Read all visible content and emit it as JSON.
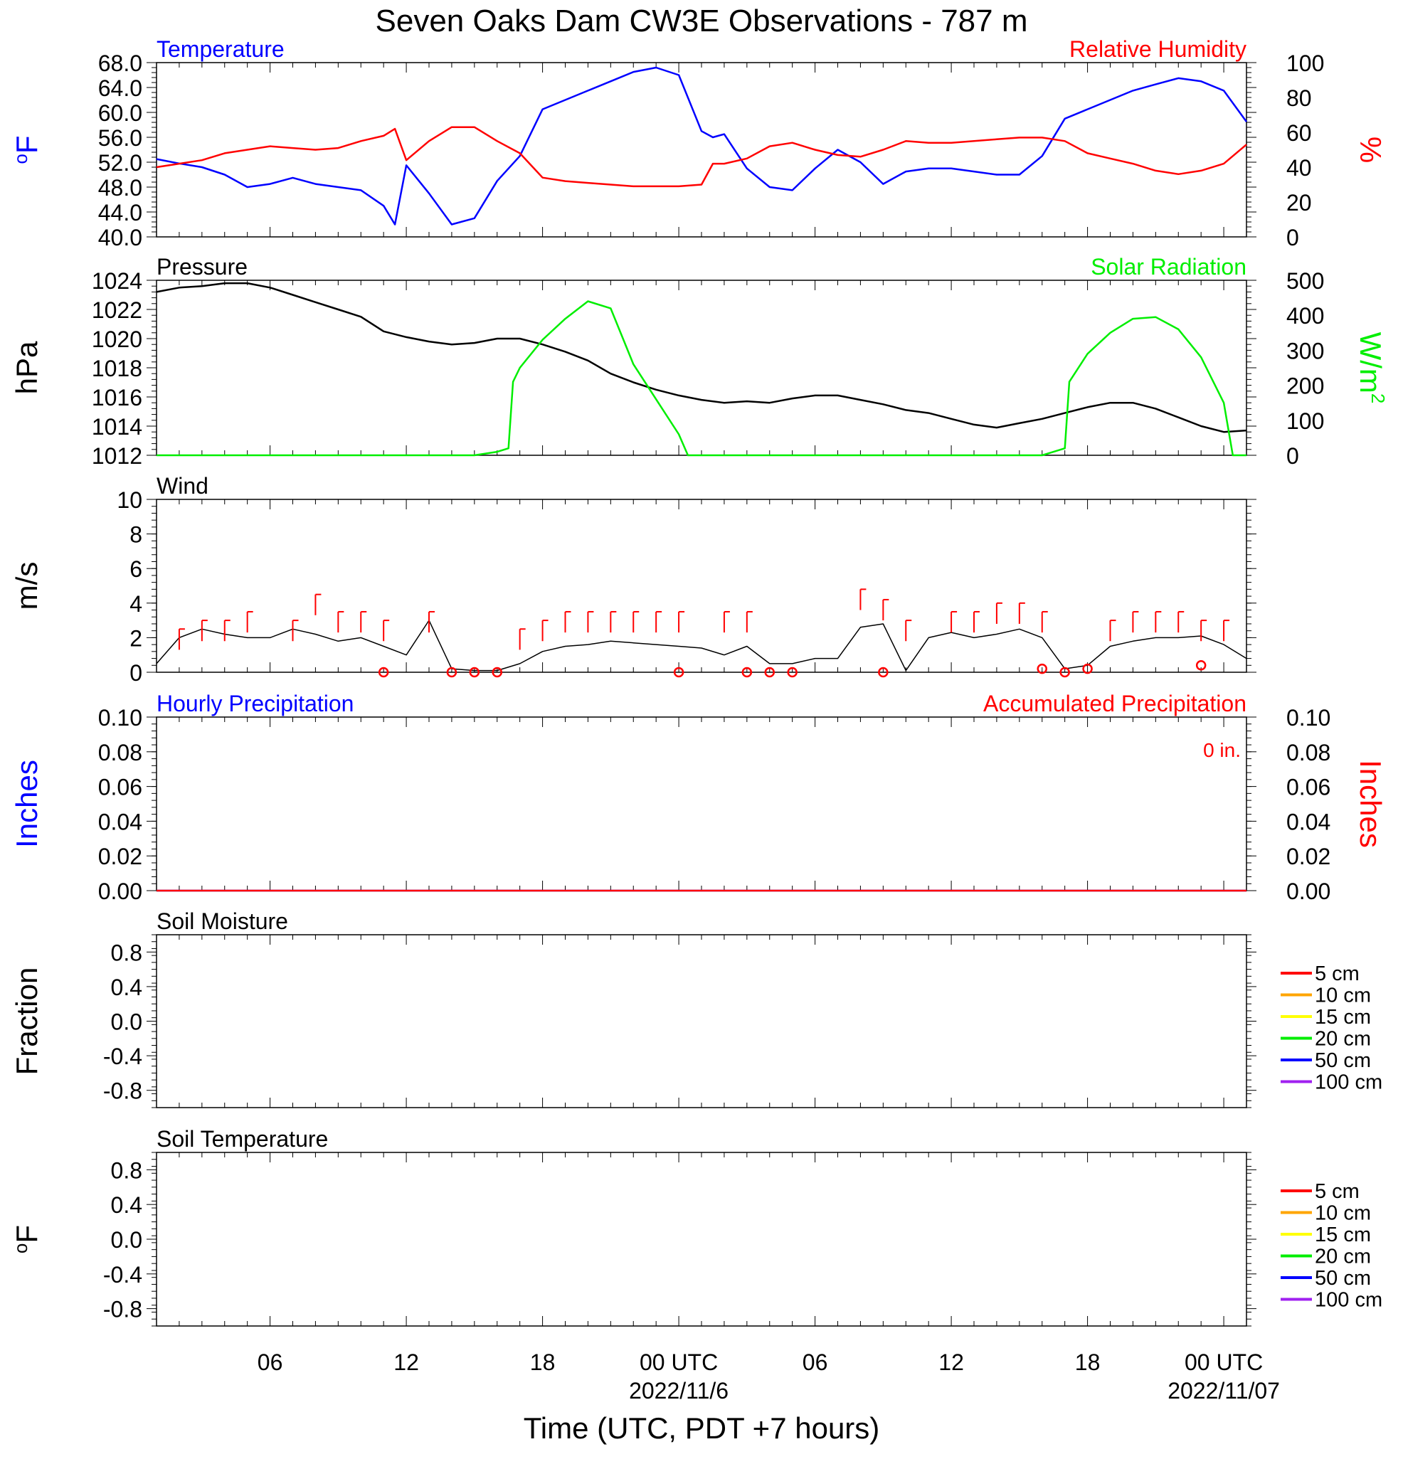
{
  "title": "Seven Oaks Dam CW3E Observations - 787 m",
  "colors": {
    "temperature": "#0000ff",
    "humidity": "#ff0000",
    "pressure": "#000000",
    "solar": "#00ee00",
    "wind": "#000000",
    "barb": "#ff0000"
  },
  "x_axis": {
    "label": "Time (UTC, PDT +7 hours)",
    "ticks": [
      {
        "hour": 6,
        "label": "06"
      },
      {
        "hour": 12,
        "label": "12"
      },
      {
        "hour": 18,
        "label": "18"
      },
      {
        "hour": 24,
        "label": "00 UTC",
        "date": "2022/11/6"
      },
      {
        "hour": 30,
        "label": "06"
      },
      {
        "hour": 36,
        "label": "12"
      },
      {
        "hour": 42,
        "label": "18"
      },
      {
        "hour": 48,
        "label": "00 UTC",
        "date": "2022/11/07"
      }
    ],
    "range_hours": [
      1,
      49
    ]
  },
  "chart_data": [
    {
      "type": "line",
      "panel": "temperature-humidity",
      "left_title": "Temperature",
      "right_title": "Relative Humidity",
      "ylabel_left": "oF",
      "ylabel_right": "%",
      "ylim_left": [
        40,
        68
      ],
      "ylim_right": [
        0,
        100
      ],
      "yticks_left": [
        "40.0",
        "44.0",
        "48.0",
        "52.0",
        "56.0",
        "60.0",
        "64.0",
        "68.0"
      ],
      "yticks_right": [
        "0",
        "20",
        "40",
        "60",
        "80",
        "100"
      ],
      "series": [
        {
          "name": "Temperature",
          "axis": "left",
          "x": [
            1,
            2,
            3,
            4,
            5,
            6,
            7,
            8,
            9,
            10,
            11,
            11.5,
            12,
            13,
            14,
            15,
            16,
            17,
            18,
            19,
            20,
            21,
            22,
            23,
            24,
            25,
            25.5,
            26,
            27,
            28,
            29,
            30,
            31,
            32,
            33,
            34,
            35,
            36,
            37,
            38,
            39,
            40,
            41,
            42,
            43,
            44,
            45,
            46,
            47,
            48,
            49
          ],
          "values": [
            52.5,
            51.8,
            51.2,
            50.0,
            48.0,
            48.5,
            49.5,
            48.5,
            48.0,
            47.5,
            45.0,
            42.0,
            51.5,
            47.0,
            42.0,
            43.0,
            49.0,
            53.0,
            60.5,
            62.0,
            63.5,
            65.0,
            66.5,
            67.2,
            66.0,
            57.0,
            56.0,
            56.5,
            51.0,
            48.0,
            47.5,
            51.0,
            54.0,
            52.0,
            48.5,
            50.5,
            51.0,
            51.0,
            50.5,
            50.0,
            50.0,
            53.0,
            59.0,
            60.5,
            62.0,
            63.5,
            64.5,
            65.5,
            65.0,
            63.5,
            58.5
          ]
        },
        {
          "name": "Relative Humidity",
          "axis": "right",
          "x": [
            1,
            2,
            3,
            4,
            5,
            6,
            7,
            8,
            9,
            10,
            11,
            11.5,
            12,
            13,
            14,
            15,
            16,
            17,
            18,
            19,
            20,
            21,
            22,
            23,
            24,
            25,
            25.5,
            26,
            27,
            28,
            29,
            30,
            31,
            32,
            33,
            34,
            35,
            36,
            37,
            38,
            39,
            40,
            41,
            42,
            43,
            44,
            45,
            46,
            47,
            48,
            49
          ],
          "values": [
            40,
            42,
            44,
            48,
            50,
            52,
            51,
            50,
            51,
            55,
            58,
            62,
            44,
            55,
            63,
            63,
            55,
            48,
            34,
            32,
            31,
            30,
            29,
            29,
            29,
            30,
            42,
            42,
            45,
            52,
            54,
            50,
            47,
            46,
            50,
            55,
            54,
            54,
            55,
            56,
            57,
            57,
            55,
            48,
            45,
            42,
            38,
            36,
            38,
            42,
            53
          ]
        }
      ]
    },
    {
      "type": "line",
      "panel": "pressure-solar",
      "left_title": "Pressure",
      "right_title": "Solar Radiation",
      "ylabel_left": "hPa",
      "ylabel_right": "W/m2",
      "ylim_left": [
        1012,
        1024
      ],
      "ylim_right": [
        0,
        500
      ],
      "yticks_left": [
        "1012",
        "1014",
        "1016",
        "1018",
        "1020",
        "1022",
        "1024"
      ],
      "yticks_right": [
        "0",
        "100",
        "200",
        "300",
        "400",
        "500"
      ],
      "series": [
        {
          "name": "Pressure",
          "axis": "left",
          "x": [
            1,
            2,
            3,
            4,
            5,
            6,
            7,
            8,
            9,
            10,
            11,
            12,
            13,
            14,
            15,
            16,
            17,
            18,
            19,
            20,
            21,
            22,
            23,
            24,
            25,
            26,
            27,
            28,
            29,
            30,
            31,
            32,
            33,
            34,
            35,
            36,
            37,
            38,
            39,
            40,
            41,
            42,
            43,
            44,
            45,
            46,
            47,
            48,
            49
          ],
          "values": [
            1023.2,
            1023.5,
            1023.6,
            1023.8,
            1023.8,
            1023.5,
            1023.0,
            1022.5,
            1022.0,
            1021.5,
            1020.5,
            1020.1,
            1019.8,
            1019.6,
            1019.7,
            1020.0,
            1020.0,
            1019.6,
            1019.1,
            1018.5,
            1017.6,
            1017.0,
            1016.5,
            1016.1,
            1015.8,
            1015.6,
            1015.7,
            1015.6,
            1015.9,
            1016.1,
            1016.1,
            1015.8,
            1015.5,
            1015.1,
            1014.9,
            1014.5,
            1014.1,
            1013.9,
            1014.2,
            1014.5,
            1014.9,
            1015.3,
            1015.6,
            1015.6,
            1015.2,
            1014.6,
            1014.0,
            1013.6,
            1013.7
          ]
        },
        {
          "name": "Solar Radiation",
          "axis": "right",
          "x": [
            1,
            15,
            16,
            16.5,
            16.7,
            17,
            18,
            19,
            20,
            21,
            22,
            23,
            24,
            24.4,
            25,
            40,
            41,
            41.2,
            42,
            43,
            44,
            45,
            46,
            47,
            48,
            48.4,
            49
          ],
          "values": [
            0,
            0,
            10,
            20,
            210,
            250,
            330,
            390,
            440,
            420,
            260,
            160,
            60,
            0,
            0,
            0,
            20,
            210,
            290,
            350,
            390,
            395,
            360,
            280,
            150,
            0,
            0
          ]
        }
      ]
    },
    {
      "type": "line",
      "panel": "wind",
      "left_title": "Wind",
      "ylabel_left": "m/s",
      "ylim_left": [
        0,
        10
      ],
      "yticks_left": [
        "0",
        "2",
        "4",
        "6",
        "8",
        "10"
      ],
      "series": [
        {
          "name": "Wind",
          "x": [
            1,
            2,
            3,
            4,
            5,
            6,
            7,
            8,
            9,
            10,
            11,
            12,
            13,
            14,
            15,
            16,
            17,
            18,
            19,
            20,
            21,
            22,
            23,
            24,
            25,
            26,
            27,
            28,
            29,
            30,
            31,
            32,
            33,
            34,
            35,
            36,
            37,
            38,
            39,
            40,
            41,
            42,
            43,
            44,
            45,
            46,
            47,
            48,
            49
          ],
          "values": [
            0.5,
            2.0,
            2.5,
            2.2,
            2.0,
            2.0,
            2.5,
            2.2,
            1.8,
            2.0,
            1.5,
            1.0,
            3.0,
            0.2,
            0.1,
            0.1,
            0.5,
            1.2,
            1.5,
            1.6,
            1.8,
            1.7,
            1.6,
            1.5,
            1.4,
            1.0,
            1.5,
            0.5,
            0.5,
            0.8,
            0.8,
            2.6,
            2.8,
            0.1,
            2.0,
            2.3,
            2.0,
            2.2,
            2.5,
            2.0,
            0.2,
            0.4,
            1.5,
            1.8,
            2.0,
            2.0,
            2.1,
            1.6,
            0.8
          ]
        },
        {
          "name": "Wind barbs",
          "x": [
            2,
            3,
            4,
            5,
            7,
            8,
            9,
            10,
            11,
            13,
            17,
            18,
            19,
            20,
            21,
            22,
            23,
            24,
            26,
            27,
            32,
            33,
            34,
            36,
            37,
            38,
            39,
            40,
            43,
            44,
            45,
            46,
            47,
            48
          ],
          "values": [
            2.5,
            3.0,
            3.0,
            3.5,
            3.0,
            4.5,
            3.5,
            3.5,
            3.0,
            3.5,
            2.5,
            3.0,
            3.5,
            3.5,
            3.5,
            3.5,
            3.5,
            3.5,
            3.5,
            3.5,
            4.8,
            4.2,
            3.0,
            3.5,
            3.5,
            4.0,
            4.0,
            3.5,
            3.0,
            3.5,
            3.5,
            3.5,
            3.0,
            3.0
          ]
        },
        {
          "name": "Calm",
          "x": [
            11,
            14,
            15,
            16,
            24,
            27,
            28,
            29,
            33,
            40,
            41,
            42,
            47
          ],
          "values": [
            0,
            0,
            0,
            0,
            0,
            0,
            0,
            0,
            0,
            0.2,
            0,
            0.2,
            0.4
          ]
        }
      ]
    },
    {
      "type": "line",
      "panel": "precipitation",
      "left_title": "Hourly Precipitation",
      "right_title": "Accumulated Precipitation",
      "annotation": "0 in.",
      "ylabel_left": "Inches",
      "ylabel_right": "Inches",
      "ylim_left": [
        0,
        0.1
      ],
      "ylim_right": [
        0,
        0.1
      ],
      "yticks_left": [
        "0.00",
        "0.02",
        "0.04",
        "0.06",
        "0.08",
        "0.10"
      ],
      "yticks_right": [
        "0.00",
        "0.02",
        "0.04",
        "0.06",
        "0.08",
        "0.10"
      ],
      "series": [
        {
          "name": "Hourly Precipitation",
          "x": [
            1,
            49
          ],
          "values": [
            0,
            0
          ]
        },
        {
          "name": "Accumulated Precipitation",
          "x": [
            1,
            49
          ],
          "values": [
            0,
            0
          ]
        }
      ]
    },
    {
      "type": "line",
      "panel": "soil-moisture",
      "left_title": "Soil Moisture",
      "ylabel_left": "Fraction",
      "ylim_left": [
        -1,
        1
      ],
      "yticks_left": [
        "-0.8",
        "-0.4",
        "0.0",
        "0.4",
        "0.8"
      ],
      "legend": [
        {
          "label": "5 cm",
          "color": "#ff0000"
        },
        {
          "label": "10 cm",
          "color": "#ffa500"
        },
        {
          "label": "15 cm",
          "color": "#ffff00"
        },
        {
          "label": "20 cm",
          "color": "#00ee00"
        },
        {
          "label": "50 cm",
          "color": "#0000ff"
        },
        {
          "label": "100 cm",
          "color": "#a020f0"
        }
      ],
      "series": []
    },
    {
      "type": "line",
      "panel": "soil-temperature",
      "left_title": "Soil Temperature",
      "ylabel_left": "oF",
      "ylim_left": [
        -1,
        1
      ],
      "yticks_left": [
        "-0.8",
        "-0.4",
        "0.0",
        "0.4",
        "0.8"
      ],
      "legend": [
        {
          "label": "5 cm",
          "color": "#ff0000"
        },
        {
          "label": "10 cm",
          "color": "#ffa500"
        },
        {
          "label": "15 cm",
          "color": "#ffff00"
        },
        {
          "label": "20 cm",
          "color": "#00ee00"
        },
        {
          "label": "50 cm",
          "color": "#0000ff"
        },
        {
          "label": "100 cm",
          "color": "#a020f0"
        }
      ],
      "series": []
    }
  ]
}
